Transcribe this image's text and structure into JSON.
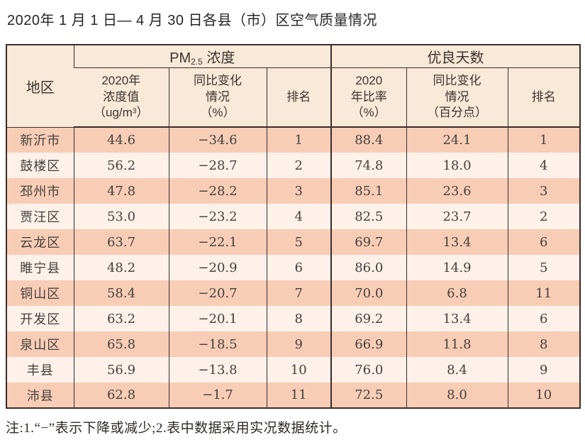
{
  "title": "2020年 1 月 1 日— 4 月 30 日各县（市）区空气质量情况",
  "note": "注:1.“−”表示下降或减少;2.表中数据采用实况数据统计。",
  "colors": {
    "row_odd": "#f8cdb6",
    "row_even": "#fdf1ea",
    "header_bg": "#f9e9d8",
    "border": "#3a2d28",
    "text": "#45403b",
    "header_text": "#3b3530"
  },
  "table": {
    "header": {
      "region": "地区",
      "pm_group": {
        "prefix": "PM",
        "sub": "2.5",
        "suffix": " 浓度"
      },
      "good_group": "优良天数",
      "pm_value": {
        "l1": "2020年",
        "l2": "浓度值",
        "l3a": "（ug/m",
        "sup": "3",
        "l3b": "）"
      },
      "pm_change": {
        "l1": "同比变化",
        "l2": "情况",
        "l3": "（%）"
      },
      "pm_rank": "排名",
      "good_ratio": {
        "l1": "2020",
        "l2": "年比率",
        "l3": "（%）"
      },
      "good_change": {
        "l1": "同比变化",
        "l2": "情况",
        "l3": "（百分点）"
      },
      "good_rank": "排名"
    },
    "rows": [
      {
        "region": "新沂市",
        "pm_value": "44.6",
        "pm_change": "−34.6",
        "pm_rank": "1",
        "good_ratio": "88.4",
        "good_change": "24.1",
        "good_rank": "1"
      },
      {
        "region": "鼓楼区",
        "pm_value": "56.2",
        "pm_change": "−28.7",
        "pm_rank": "2",
        "good_ratio": "74.8",
        "good_change": "18.0",
        "good_rank": "4"
      },
      {
        "region": "邳州市",
        "pm_value": "47.8",
        "pm_change": "−28.2",
        "pm_rank": "3",
        "good_ratio": "85.1",
        "good_change": "23.6",
        "good_rank": "3"
      },
      {
        "region": "贾汪区",
        "pm_value": "53.0",
        "pm_change": "−23.2",
        "pm_rank": "4",
        "good_ratio": "82.5",
        "good_change": "23.7",
        "good_rank": "2"
      },
      {
        "region": "云龙区",
        "pm_value": "63.7",
        "pm_change": "−22.1",
        "pm_rank": "5",
        "good_ratio": "69.7",
        "good_change": "13.4",
        "good_rank": "6"
      },
      {
        "region": "睢宁县",
        "pm_value": "48.2",
        "pm_change": "−20.9",
        "pm_rank": "6",
        "good_ratio": "86.0",
        "good_change": "14.9",
        "good_rank": "5"
      },
      {
        "region": "铜山区",
        "pm_value": "58.4",
        "pm_change": "−20.7",
        "pm_rank": "7",
        "good_ratio": "70.0",
        "good_change": "6.8",
        "good_rank": "11"
      },
      {
        "region": "开发区",
        "pm_value": "63.2",
        "pm_change": "−20.1",
        "pm_rank": "8",
        "good_ratio": "69.2",
        "good_change": "13.4",
        "good_rank": "6"
      },
      {
        "region": "泉山区",
        "pm_value": "65.8",
        "pm_change": "−18.5",
        "pm_rank": "9",
        "good_ratio": "66.9",
        "good_change": "11.8",
        "good_rank": "8"
      },
      {
        "region": "丰县",
        "pm_value": "56.9",
        "pm_change": "−13.8",
        "pm_rank": "10",
        "good_ratio": "76.0",
        "good_change": "8.4",
        "good_rank": "9"
      },
      {
        "region": "沛县",
        "pm_value": "62.8",
        "pm_change": "−1.7",
        "pm_rank": "11",
        "good_ratio": "72.5",
        "good_change": "8.0",
        "good_rank": "10"
      }
    ]
  }
}
